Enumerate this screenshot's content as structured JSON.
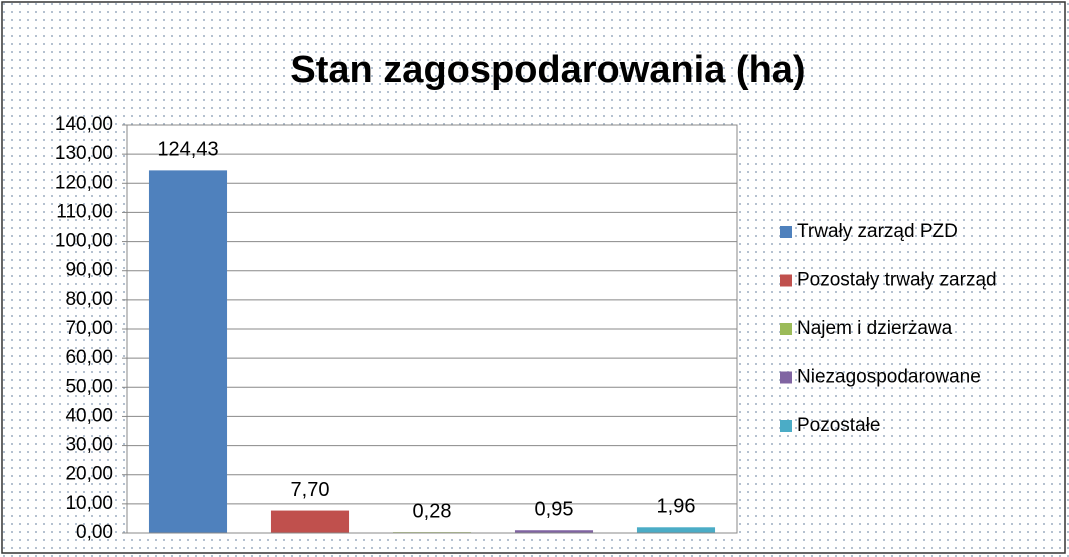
{
  "chart_data": {
    "type": "bar",
    "title": "Stan zagospodarowania (ha)",
    "categories": [
      null
    ],
    "series": [
      {
        "name": "Trwały zarząd PZD",
        "color": "#4f81bd",
        "values": [
          124.43
        ],
        "value_labels": [
          "124,43"
        ]
      },
      {
        "name": "Pozostały trwały zarząd",
        "color": "#c0504d",
        "values": [
          7.7
        ],
        "value_labels": [
          "7,70"
        ]
      },
      {
        "name": "Najem i dzierżawa",
        "color": "#9bbb59",
        "values": [
          0.28
        ],
        "value_labels": [
          "0,28"
        ]
      },
      {
        "name": "Niezagospodarowane",
        "color": "#8064a2",
        "values": [
          0.95
        ],
        "value_labels": [
          "0,95"
        ]
      },
      {
        "name": "Pozostałe",
        "color": "#4bacc6",
        "values": [
          1.96
        ],
        "value_labels": [
          "1,96"
        ]
      }
    ],
    "ylim": [
      0,
      140
    ],
    "yticks": [
      {
        "value": 0,
        "label": "0,00"
      },
      {
        "value": 10,
        "label": "10,00"
      },
      {
        "value": 20,
        "label": "20,00"
      },
      {
        "value": 30,
        "label": "30,00"
      },
      {
        "value": 40,
        "label": "40,00"
      },
      {
        "value": 50,
        "label": "50,00"
      },
      {
        "value": 60,
        "label": "60,00"
      },
      {
        "value": 70,
        "label": "70,00"
      },
      {
        "value": 80,
        "label": "80,00"
      },
      {
        "value": 90,
        "label": "90,00"
      },
      {
        "value": 100,
        "label": "100,00"
      },
      {
        "value": 110,
        "label": "110,00"
      },
      {
        "value": 120,
        "label": "120,00"
      },
      {
        "value": 130,
        "label": "130,00"
      },
      {
        "value": 140,
        "label": "140,00"
      }
    ],
    "grid": true,
    "legend": "right"
  }
}
